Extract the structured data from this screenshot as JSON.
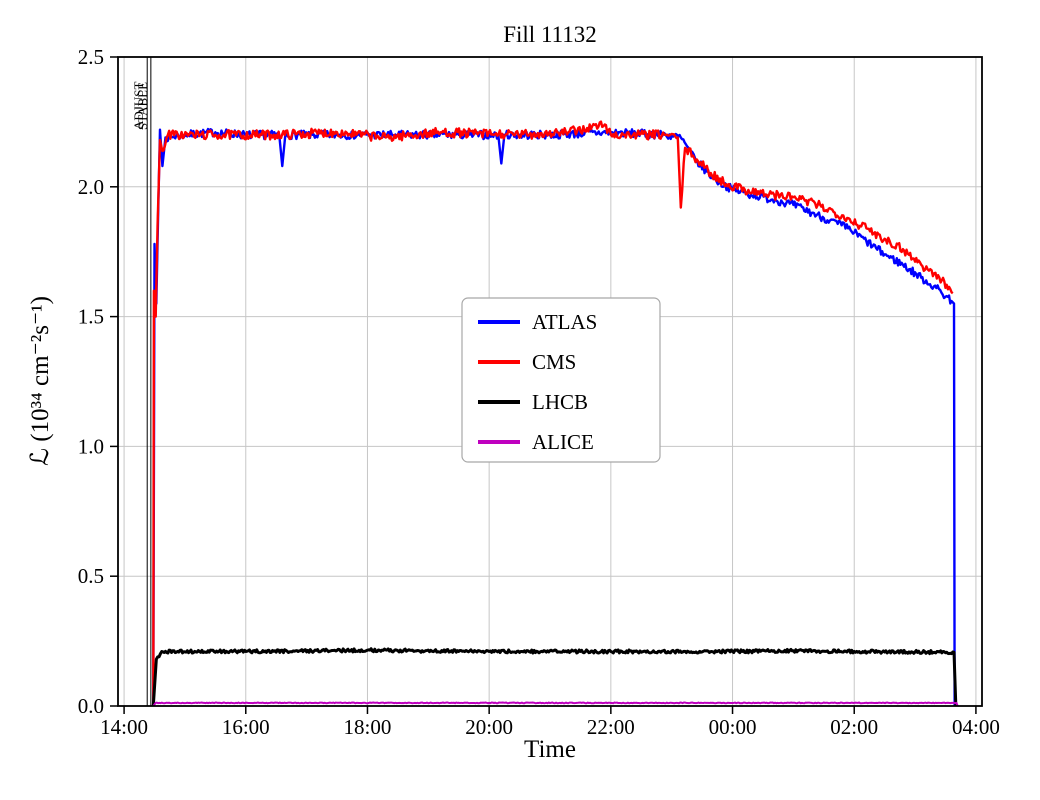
{
  "chart_data": {
    "type": "line",
    "title": "Fill 11132",
    "xlabel": "Time",
    "ylabel": "ℒ (10³⁴ cm⁻²s⁻¹)",
    "xlim": [
      13.9,
      28.1
    ],
    "ylim": [
      0.0,
      2.5
    ],
    "grid": true,
    "background": "#ffffff",
    "grid_color": "#c6c6c6",
    "x_ticks": [
      {
        "value": 14,
        "label": "14:00"
      },
      {
        "value": 16,
        "label": "16:00"
      },
      {
        "value": 18,
        "label": "18:00"
      },
      {
        "value": 20,
        "label": "20:00"
      },
      {
        "value": 22,
        "label": "22:00"
      },
      {
        "value": 24,
        "label": "00:00"
      },
      {
        "value": 26,
        "label": "02:00"
      },
      {
        "value": 28,
        "label": "04:00"
      }
    ],
    "y_ticks": [
      {
        "value": 0.0,
        "label": "0.0"
      },
      {
        "value": 0.5,
        "label": "0.5"
      },
      {
        "value": 1.0,
        "label": "1.0"
      },
      {
        "value": 1.5,
        "label": "1.5"
      },
      {
        "value": 2.0,
        "label": "2.0"
      },
      {
        "value": 2.5,
        "label": "2.5"
      }
    ],
    "annotations": [
      {
        "type": "vline",
        "x": 14.38,
        "label": "ADJUST"
      },
      {
        "type": "vline",
        "x": 14.44,
        "label": "STABLE"
      }
    ],
    "legend": {
      "position": "center",
      "entries": [
        "ATLAS",
        "CMS",
        "LHCB",
        "ALICE"
      ]
    },
    "series": [
      {
        "name": "ATLAS",
        "color": "#0000ff",
        "width": 2.4,
        "noise": 0.016,
        "points": [
          [
            14.48,
            0.0
          ],
          [
            14.5,
            1.78
          ],
          [
            14.53,
            1.55
          ],
          [
            14.56,
            1.9
          ],
          [
            14.59,
            2.22
          ],
          [
            14.63,
            2.08
          ],
          [
            14.68,
            2.19
          ],
          [
            15.0,
            2.2
          ],
          [
            15.5,
            2.21
          ],
          [
            16.0,
            2.2
          ],
          [
            16.55,
            2.2
          ],
          [
            16.6,
            2.08
          ],
          [
            16.65,
            2.2
          ],
          [
            17.5,
            2.2
          ],
          [
            18.5,
            2.2
          ],
          [
            19.5,
            2.2
          ],
          [
            20.15,
            2.2
          ],
          [
            20.2,
            2.09
          ],
          [
            20.25,
            2.2
          ],
          [
            21.0,
            2.2
          ],
          [
            22.0,
            2.21
          ],
          [
            22.9,
            2.2
          ],
          [
            23.15,
            2.19
          ],
          [
            23.4,
            2.1
          ],
          [
            23.7,
            2.03
          ],
          [
            24.0,
            1.99
          ],
          [
            24.3,
            1.97
          ],
          [
            24.7,
            1.95
          ],
          [
            25.0,
            1.93
          ],
          [
            25.3,
            1.9
          ],
          [
            25.6,
            1.87
          ],
          [
            25.9,
            1.84
          ],
          [
            26.2,
            1.79
          ],
          [
            26.5,
            1.74
          ],
          [
            26.8,
            1.7
          ],
          [
            27.1,
            1.65
          ],
          [
            27.35,
            1.61
          ],
          [
            27.6,
            1.56
          ],
          [
            27.64,
            1.55
          ],
          [
            27.65,
            0.0
          ]
        ]
      },
      {
        "name": "CMS",
        "color": "#ff0000",
        "width": 2.4,
        "noise": 0.018,
        "points": [
          [
            14.48,
            0.0
          ],
          [
            14.49,
            1.6
          ],
          [
            14.52,
            1.5
          ],
          [
            14.55,
            1.85
          ],
          [
            14.59,
            2.18
          ],
          [
            14.65,
            2.14
          ],
          [
            14.72,
            2.2
          ],
          [
            15.5,
            2.2
          ],
          [
            16.5,
            2.2
          ],
          [
            17.5,
            2.21
          ],
          [
            18.3,
            2.19
          ],
          [
            19.2,
            2.21
          ],
          [
            20.4,
            2.2
          ],
          [
            21.3,
            2.21
          ],
          [
            21.9,
            2.24
          ],
          [
            22.0,
            2.2
          ],
          [
            22.9,
            2.2
          ],
          [
            23.1,
            2.19
          ],
          [
            23.15,
            1.92
          ],
          [
            23.22,
            2.15
          ],
          [
            23.35,
            2.12
          ],
          [
            23.6,
            2.06
          ],
          [
            23.9,
            2.01
          ],
          [
            24.2,
            1.99
          ],
          [
            24.6,
            1.97
          ],
          [
            25.0,
            1.96
          ],
          [
            25.4,
            1.93
          ],
          [
            25.8,
            1.89
          ],
          [
            26.2,
            1.84
          ],
          [
            26.5,
            1.8
          ],
          [
            26.8,
            1.76
          ],
          [
            27.1,
            1.7
          ],
          [
            27.4,
            1.65
          ],
          [
            27.62,
            1.59
          ]
        ]
      },
      {
        "name": "LHCB",
        "color": "#000000",
        "width": 3.0,
        "noise": 0.006,
        "points": [
          [
            14.48,
            0.0
          ],
          [
            14.53,
            0.18
          ],
          [
            14.62,
            0.21
          ],
          [
            16.0,
            0.21
          ],
          [
            18.0,
            0.215
          ],
          [
            20.0,
            0.21
          ],
          [
            22.0,
            0.21
          ],
          [
            24.0,
            0.21
          ],
          [
            25.0,
            0.213
          ],
          [
            26.0,
            0.21
          ],
          [
            27.0,
            0.208
          ],
          [
            27.64,
            0.207
          ],
          [
            27.67,
            0.0
          ]
        ]
      },
      {
        "name": "ALICE",
        "color": "#bf00bf",
        "width": 2.0,
        "noise": 0.0015,
        "points": [
          [
            14.48,
            0.0
          ],
          [
            14.52,
            0.012
          ],
          [
            17.0,
            0.012
          ],
          [
            20.0,
            0.012
          ],
          [
            23.0,
            0.012
          ],
          [
            26.0,
            0.012
          ],
          [
            27.68,
            0.012
          ],
          [
            27.7,
            0.0
          ]
        ]
      }
    ]
  }
}
